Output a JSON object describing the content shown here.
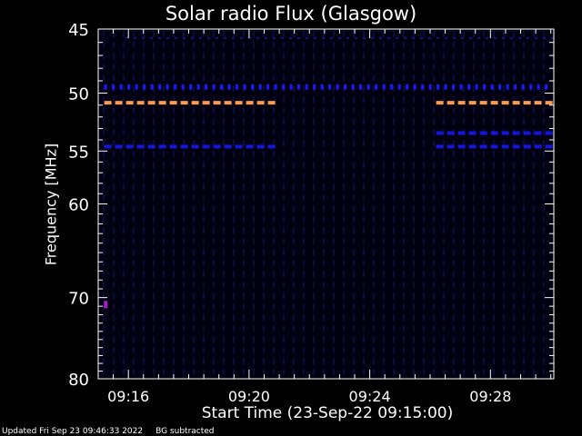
{
  "chart_data": {
    "type": "heatmap",
    "title": "Solar radio Flux (Glasgow)",
    "xlabel": "Start Time (23-Sep-22 09:15:00)",
    "ylabel": "Frequency [MHz]",
    "x_tick_labels": [
      "09:16",
      "09:20",
      "09:24",
      "09:28"
    ],
    "x_tick_minutes": [
      1,
      5,
      9,
      13
    ],
    "xlim_minutes": [
      0,
      15.1
    ],
    "y_tick_values": [
      45,
      50,
      55,
      60,
      70,
      80
    ],
    "y_tick_labels": [
      "45",
      "50",
      "55",
      "60",
      "70",
      "80"
    ],
    "ylim": [
      45,
      80
    ],
    "background_color": "#000010",
    "bands": [
      {
        "freq": 49.5,
        "color": "#1a1aff",
        "segments": [
          [
            0.2,
            15.0
          ]
        ],
        "style": "ticks"
      },
      {
        "freq": 50.8,
        "color": "#ff9a4a",
        "segments": [
          [
            0.2,
            5.8
          ],
          [
            11.2,
            15.0
          ]
        ],
        "style": "dash"
      },
      {
        "freq": 53.4,
        "color": "#1515e0",
        "segments": [
          [
            11.2,
            15.0
          ]
        ],
        "style": "dash"
      },
      {
        "freq": 54.6,
        "color": "#1515e0",
        "segments": [
          [
            0.2,
            5.8
          ],
          [
            11.2,
            15.0
          ]
        ],
        "style": "dash"
      }
    ],
    "spots": [
      {
        "minute": 0.25,
        "freq": 70.8,
        "color": "#a020c0"
      }
    ]
  },
  "footer": {
    "updated": "Updated Fri Sep 23 09:46:33 2022",
    "note": "BG subtracted"
  },
  "colors": {
    "axis": "#ffffff",
    "text": "#ffffff"
  }
}
